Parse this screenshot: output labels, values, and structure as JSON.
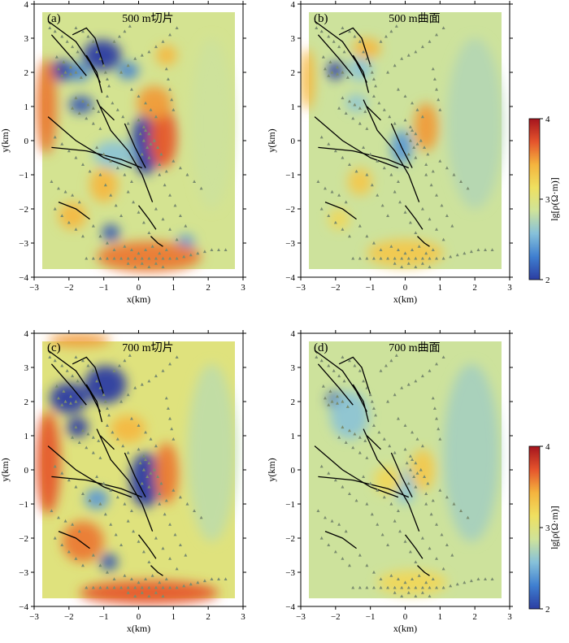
{
  "colors": {
    "scale": [
      "#2b3da2",
      "#3f7fd0",
      "#86c1da",
      "#cfe39a",
      "#efe060",
      "#f4b43e",
      "#e5542c",
      "#a5141e"
    ],
    "fault": "#000000",
    "station": "#7a8c6e"
  },
  "colorbars": [
    {
      "label": "lg[ρ(Ω·m)]",
      "ticks": [
        "4",
        "3",
        "2"
      ]
    },
    {
      "label": "lg[ρ(Ω·m)]",
      "ticks": [
        "4",
        "3",
        "2"
      ]
    }
  ],
  "chart_data": [
    {
      "type": "heatmap",
      "panel": "(a)",
      "title": "500 m切片",
      "xlabel": "x(km)",
      "ylabel": "y(km)",
      "xlim": [
        -3,
        3
      ],
      "ylim": [
        -4,
        4
      ],
      "xticks": [
        "−3",
        "−2",
        "−1",
        "0",
        "1",
        "2",
        "3"
      ],
      "yticks": [
        "4",
        "3",
        "2",
        "1",
        "0",
        "−1",
        "−2",
        "−3",
        "−4"
      ],
      "colorbar": {
        "label": "lg[ρ(Ω·m)]",
        "range": [
          2,
          4
        ]
      },
      "base_value": 2.9,
      "anomalies": [
        {
          "x": -2.2,
          "y": 2.05,
          "rx": 0.35,
          "ry": 0.3,
          "value": 2.0
        },
        {
          "x": -1.7,
          "y": 2.0,
          "rx": 0.3,
          "ry": 0.25,
          "value": 2.3
        },
        {
          "x": -1.05,
          "y": 2.5,
          "rx": 0.55,
          "ry": 0.45,
          "value": 2.0
        },
        {
          "x": -0.3,
          "y": 2.05,
          "rx": 0.3,
          "ry": 0.25,
          "value": 2.3
        },
        {
          "x": -1.65,
          "y": 1.05,
          "rx": 0.35,
          "ry": 0.25,
          "value": 2.1
        },
        {
          "x": 0.2,
          "y": -0.1,
          "rx": 0.4,
          "ry": 0.9,
          "value": 2.0
        },
        {
          "x": -0.8,
          "y": -2.7,
          "rx": 0.25,
          "ry": 0.25,
          "value": 2.1
        },
        {
          "x": 1.35,
          "y": -3.0,
          "rx": 0.25,
          "ry": 0.25,
          "value": 2.4
        },
        {
          "x": -0.7,
          "y": -0.4,
          "rx": 0.6,
          "ry": 0.4,
          "value": 2.6
        },
        {
          "x": -2.65,
          "y": 1.0,
          "rx": 0.3,
          "ry": 1.4,
          "value": 3.6
        },
        {
          "x": 0.7,
          "y": 0.1,
          "rx": 0.4,
          "ry": 0.9,
          "value": 3.7
        },
        {
          "x": 0.45,
          "y": 1.1,
          "rx": 0.5,
          "ry": 0.5,
          "value": 3.5
        },
        {
          "x": -1.0,
          "y": -1.3,
          "rx": 0.4,
          "ry": 0.5,
          "value": 3.4
        },
        {
          "x": 0.3,
          "y": -3.4,
          "rx": 1.5,
          "ry": 0.45,
          "value": 3.6
        },
        {
          "x": -1.9,
          "y": -2.2,
          "rx": 0.4,
          "ry": 0.4,
          "value": 3.4
        },
        {
          "x": 0.8,
          "y": 2.5,
          "rx": 0.3,
          "ry": 0.3,
          "value": 3.4
        },
        {
          "x": 2.1,
          "y": 0.5,
          "rx": 0.6,
          "ry": 2.5,
          "value": 2.85
        }
      ]
    },
    {
      "type": "heatmap",
      "panel": "(b)",
      "title": "500 m曲面",
      "xlabel": "x(km)",
      "ylabel": "y(km)",
      "xlim": [
        -3,
        3
      ],
      "ylim": [
        -4,
        4
      ],
      "xticks": [
        "−3",
        "−2",
        "−1",
        "0",
        "1",
        "2",
        "3"
      ],
      "yticks": [
        "4",
        "3",
        "2",
        "1",
        "0",
        "−1",
        "−2",
        "−3",
        "−4"
      ],
      "colorbar": {
        "label": "lg[ρ(Ω·m)]",
        "range": [
          2,
          4
        ]
      },
      "base_value": 2.85,
      "anomalies": [
        {
          "x": -2.0,
          "y": 2.05,
          "rx": 0.25,
          "ry": 0.25,
          "value": 2.0
        },
        {
          "x": -1.3,
          "y": 2.1,
          "rx": 0.35,
          "ry": 0.35,
          "value": 2.6
        },
        {
          "x": -1.4,
          "y": 1.1,
          "rx": 0.3,
          "ry": 0.25,
          "value": 2.6
        },
        {
          "x": -0.1,
          "y": -0.2,
          "rx": 0.3,
          "ry": 0.5,
          "value": 2.4
        },
        {
          "x": 0.6,
          "y": 0.4,
          "rx": 0.35,
          "ry": 0.7,
          "value": 3.5
        },
        {
          "x": -1.1,
          "y": 2.7,
          "rx": 0.4,
          "ry": 0.3,
          "value": 3.4
        },
        {
          "x": -2.8,
          "y": 1.8,
          "rx": 0.2,
          "ry": 0.9,
          "value": 3.4
        },
        {
          "x": -1.3,
          "y": -1.2,
          "rx": 0.35,
          "ry": 0.4,
          "value": 3.3
        },
        {
          "x": 0.0,
          "y": -3.3,
          "rx": 1.1,
          "ry": 0.4,
          "value": 3.3
        },
        {
          "x": -1.9,
          "y": -2.3,
          "rx": 0.3,
          "ry": 0.3,
          "value": 3.2
        },
        {
          "x": 2.0,
          "y": 0.5,
          "rx": 0.8,
          "ry": 2.5,
          "value": 2.75
        }
      ]
    },
    {
      "type": "heatmap",
      "panel": "(c)",
      "title": "700 m切片",
      "xlabel": "x(km)",
      "ylabel": "y(km)",
      "xlim": [
        -3,
        3
      ],
      "ylim": [
        -4,
        4
      ],
      "xticks": [
        "−3",
        "−2",
        "−1",
        "0",
        "1",
        "2",
        "3"
      ],
      "yticks": [
        "4",
        "3",
        "2",
        "1",
        "0",
        "−1",
        "−2",
        "−3",
        "−4"
      ],
      "colorbar": {
        "label": "lg[ρ(Ω·m)]",
        "range": [
          2,
          4
        ]
      },
      "base_value": 3.0,
      "anomalies": [
        {
          "x": -2.0,
          "y": 2.1,
          "rx": 0.55,
          "ry": 0.45,
          "value": 2.0
        },
        {
          "x": -0.95,
          "y": 2.5,
          "rx": 0.6,
          "ry": 0.55,
          "value": 2.0
        },
        {
          "x": -1.75,
          "y": 1.25,
          "rx": 0.3,
          "ry": 0.3,
          "value": 2.0
        },
        {
          "x": 0.2,
          "y": -0.3,
          "rx": 0.45,
          "ry": 0.8,
          "value": 2.0
        },
        {
          "x": -1.2,
          "y": -0.85,
          "rx": 0.35,
          "ry": 0.3,
          "value": 2.4
        },
        {
          "x": -0.85,
          "y": -2.7,
          "rx": 0.25,
          "ry": 0.25,
          "value": 2.1
        },
        {
          "x": -2.6,
          "y": 0.2,
          "rx": 0.35,
          "ry": 1.5,
          "value": 3.7
        },
        {
          "x": 0.8,
          "y": -0.1,
          "rx": 0.35,
          "ry": 0.9,
          "value": 3.6
        },
        {
          "x": -1.6,
          "y": -2.1,
          "rx": 0.6,
          "ry": 0.6,
          "value": 3.6
        },
        {
          "x": 0.3,
          "y": -3.6,
          "rx": 2.0,
          "ry": 0.35,
          "value": 3.7
        },
        {
          "x": -1.7,
          "y": 3.8,
          "rx": 0.9,
          "ry": 0.2,
          "value": 3.5
        },
        {
          "x": -0.3,
          "y": 1.2,
          "rx": 0.5,
          "ry": 0.4,
          "value": 3.4
        },
        {
          "x": 2.1,
          "y": 0.5,
          "rx": 0.7,
          "ry": 2.6,
          "value": 2.8
        }
      ]
    },
    {
      "type": "heatmap",
      "panel": "(d)",
      "title": "700 m曲面",
      "xlabel": "x(km)",
      "ylabel": "y(km)",
      "xlim": [
        -3,
        3
      ],
      "ylim": [
        -4,
        4
      ],
      "xticks": [
        "−3",
        "−2",
        "−1",
        "0",
        "1",
        "2",
        "3"
      ],
      "yticks": [
        "4",
        "3",
        "2",
        "1",
        "0",
        "−1",
        "−2",
        "−3",
        "−4"
      ],
      "colorbar": {
        "label": "lg[ρ(Ω·m)]",
        "range": [
          2,
          4
        ]
      },
      "base_value": 2.85,
      "anomalies": [
        {
          "x": -2.0,
          "y": 2.05,
          "rx": 0.25,
          "ry": 0.25,
          "value": 2.1
        },
        {
          "x": -1.6,
          "y": 1.6,
          "rx": 0.55,
          "ry": 0.7,
          "value": 2.6
        },
        {
          "x": 0.0,
          "y": -0.5,
          "rx": 0.3,
          "ry": 0.5,
          "value": 2.6
        },
        {
          "x": 0.5,
          "y": 0.0,
          "rx": 0.35,
          "ry": 0.6,
          "value": 3.3
        },
        {
          "x": 0.2,
          "y": -3.3,
          "rx": 1.0,
          "ry": 0.35,
          "value": 3.2
        },
        {
          "x": -0.5,
          "y": -0.3,
          "rx": 0.4,
          "ry": 0.4,
          "value": 3.2
        },
        {
          "x": 1.9,
          "y": 0.5,
          "rx": 0.8,
          "ry": 2.6,
          "value": 2.7
        }
      ]
    }
  ],
  "faults": [
    [
      [
        -2.6,
        3.5
      ],
      [
        -1.8,
        2.9
      ],
      [
        -1.4,
        2.3
      ],
      [
        -1.1,
        1.7
      ]
    ],
    [
      [
        -2.5,
        3.1
      ],
      [
        -1.9,
        2.4
      ],
      [
        -1.5,
        1.9
      ]
    ],
    [
      [
        -1.9,
        3.1
      ],
      [
        -1.5,
        3.3
      ],
      [
        -1.25,
        3.0
      ],
      [
        -1.0,
        2.2
      ]
    ],
    [
      [
        -1.5,
        2.5
      ],
      [
        -1.2,
        2.0
      ],
      [
        -1.05,
        1.4
      ]
    ],
    [
      [
        -1.2,
        1.2
      ],
      [
        -0.8,
        0.3
      ],
      [
        -0.3,
        -0.3
      ],
      [
        0.1,
        -1.0
      ],
      [
        0.4,
        -1.8
      ]
    ],
    [
      [
        -2.6,
        0.7
      ],
      [
        -1.8,
        0.0
      ],
      [
        -1.0,
        -0.5
      ],
      [
        -0.2,
        -0.8
      ]
    ],
    [
      [
        -2.5,
        -0.2
      ],
      [
        -1.5,
        -0.3
      ],
      [
        -0.5,
        -0.55
      ],
      [
        0.1,
        -0.8
      ]
    ],
    [
      [
        -0.4,
        0.5
      ],
      [
        -0.1,
        -0.2
      ],
      [
        0.2,
        -0.8
      ]
    ],
    [
      [
        -1.1,
        1.0
      ],
      [
        -0.7,
        0.6
      ]
    ],
    [
      [
        -2.3,
        -1.8
      ],
      [
        -1.8,
        -2.0
      ],
      [
        -1.4,
        -2.3
      ]
    ],
    [
      [
        0.0,
        -1.9
      ],
      [
        0.3,
        -2.3
      ],
      [
        0.5,
        -2.6
      ]
    ],
    [
      [
        0.35,
        -2.8
      ],
      [
        0.55,
        -3.0
      ],
      [
        0.7,
        -3.1
      ]
    ]
  ],
  "stations": [
    [
      -2.55,
      3.3
    ],
    [
      -2.4,
      3.2
    ],
    [
      -2.2,
      3.05
    ],
    [
      -2.05,
      2.9
    ],
    [
      -1.9,
      2.75
    ],
    [
      -1.75,
      2.6
    ],
    [
      -1.8,
      3.3
    ],
    [
      -1.6,
      3.2
    ],
    [
      -1.45,
      3.05
    ],
    [
      -1.3,
      2.9
    ],
    [
      -2.35,
      2.45
    ],
    [
      -2.15,
      2.3
    ],
    [
      -1.95,
      2.15
    ],
    [
      -1.8,
      2.0
    ],
    [
      -1.65,
      1.85
    ],
    [
      -2.3,
      2.1
    ],
    [
      -2.1,
      2.0
    ],
    [
      -2.2,
      1.9
    ],
    [
      -1.95,
      1.95
    ],
    [
      -1.2,
      2.6
    ],
    [
      -1.1,
      2.4
    ],
    [
      -1.0,
      2.2
    ],
    [
      -0.95,
      2.0
    ],
    [
      -0.9,
      1.8
    ],
    [
      -0.85,
      1.6
    ],
    [
      -0.7,
      2.9
    ],
    [
      -0.55,
      3.05
    ],
    [
      -0.4,
      3.2
    ],
    [
      -0.25,
      3.35
    ],
    [
      -0.5,
      2.0
    ],
    [
      -0.3,
      2.2
    ],
    [
      -0.1,
      2.4
    ],
    [
      0.1,
      2.5
    ],
    [
      0.3,
      2.6
    ],
    [
      0.5,
      2.75
    ],
    [
      0.7,
      2.9
    ],
    [
      0.9,
      3.1
    ],
    [
      1.1,
      3.3
    ],
    [
      -1.8,
      1.25
    ],
    [
      -1.6,
      1.15
    ],
    [
      -1.45,
      1.05
    ],
    [
      -1.3,
      0.95
    ],
    [
      -1.15,
      0.85
    ],
    [
      -1.9,
      0.95
    ],
    [
      -1.7,
      0.8
    ],
    [
      -1.5,
      0.65
    ],
    [
      -1.3,
      0.5
    ],
    [
      -1.1,
      0.35
    ],
    [
      -0.9,
      1.3
    ],
    [
      -0.75,
      1.1
    ],
    [
      -0.6,
      0.9
    ],
    [
      -0.45,
      0.7
    ],
    [
      -0.3,
      0.5
    ],
    [
      -0.2,
      1.5
    ],
    [
      0.0,
      1.3
    ],
    [
      0.2,
      1.1
    ],
    [
      0.35,
      0.9
    ],
    [
      0.5,
      0.7
    ],
    [
      0.0,
      0.6
    ],
    [
      0.15,
      0.4
    ],
    [
      0.3,
      0.2
    ],
    [
      0.45,
      0.0
    ],
    [
      0.55,
      -0.2
    ],
    [
      0.65,
      -0.4
    ],
    [
      0.05,
      0.2
    ],
    [
      0.15,
      0.0
    ],
    [
      0.25,
      -0.2
    ],
    [
      0.1,
      -0.4
    ],
    [
      0.3,
      -0.5
    ],
    [
      0.2,
      0.3
    ],
    [
      0.35,
      -0.1
    ],
    [
      0.8,
      2.1
    ],
    [
      0.85,
      1.8
    ],
    [
      0.9,
      1.5
    ],
    [
      0.95,
      1.2
    ],
    [
      1.0,
      0.9
    ],
    [
      -2.4,
      0.1
    ],
    [
      -2.2,
      -0.1
    ],
    [
      -2.0,
      -0.3
    ],
    [
      -1.8,
      -0.5
    ],
    [
      -1.6,
      -0.7
    ],
    [
      -1.4,
      -0.9
    ],
    [
      -2.5,
      -1.2
    ],
    [
      -2.3,
      -1.4
    ],
    [
      -2.1,
      -1.5
    ],
    [
      -1.9,
      -1.6
    ],
    [
      -1.7,
      -1.8
    ],
    [
      -1.2,
      -0.2
    ],
    [
      -1.0,
      -0.4
    ],
    [
      -0.8,
      -0.6
    ],
    [
      -0.6,
      -0.8
    ],
    [
      -0.4,
      -1.0
    ],
    [
      -0.2,
      -1.2
    ],
    [
      -1.1,
      -1.0
    ],
    [
      -0.95,
      -1.3
    ],
    [
      -0.8,
      -1.6
    ],
    [
      -0.65,
      -1.9
    ],
    [
      -0.5,
      -2.2
    ],
    [
      -0.3,
      -1.5
    ],
    [
      -0.15,
      -1.8
    ],
    [
      0.0,
      -2.1
    ],
    [
      0.15,
      -2.4
    ],
    [
      0.3,
      -2.7
    ],
    [
      -2.4,
      -2.0
    ],
    [
      -2.2,
      -2.2
    ],
    [
      -2.0,
      -2.4
    ],
    [
      -1.8,
      -2.6
    ],
    [
      -1.6,
      -2.8
    ],
    [
      -1.3,
      -2.5
    ],
    [
      -1.1,
      -2.8
    ],
    [
      -0.9,
      -3.0
    ],
    [
      -0.7,
      -3.2
    ],
    [
      -1.5,
      -3.45
    ],
    [
      -1.3,
      -3.45
    ],
    [
      -1.1,
      -3.45
    ],
    [
      -0.9,
      -3.45
    ],
    [
      -0.7,
      -3.45
    ],
    [
      -0.5,
      -3.45
    ],
    [
      -0.3,
      -3.45
    ],
    [
      -0.1,
      -3.45
    ],
    [
      0.1,
      -3.45
    ],
    [
      0.3,
      -3.45
    ],
    [
      0.5,
      -3.45
    ],
    [
      0.7,
      -3.45
    ],
    [
      0.9,
      -3.45
    ],
    [
      1.1,
      -3.45
    ],
    [
      1.3,
      -3.4
    ],
    [
      1.5,
      -3.35
    ],
    [
      1.7,
      -3.3
    ],
    [
      1.9,
      -3.25
    ],
    [
      2.1,
      -3.2
    ],
    [
      2.3,
      -3.2
    ],
    [
      2.5,
      -3.2
    ],
    [
      -0.4,
      -3.1
    ],
    [
      -0.2,
      -3.2
    ],
    [
      0.0,
      -3.3
    ],
    [
      0.2,
      -3.2
    ],
    [
      0.4,
      -3.1
    ],
    [
      0.6,
      -3.3
    ],
    [
      0.8,
      -3.2
    ],
    [
      -0.3,
      -3.6
    ],
    [
      -0.1,
      -3.7
    ],
    [
      0.1,
      -3.6
    ],
    [
      0.3,
      -3.7
    ],
    [
      0.5,
      -3.6
    ],
    [
      0.7,
      -3.7
    ],
    [
      0.6,
      -1.0
    ],
    [
      0.75,
      -1.3
    ],
    [
      0.9,
      -1.6
    ],
    [
      1.05,
      -1.9
    ],
    [
      1.2,
      -2.2
    ],
    [
      1.35,
      -2.5
    ],
    [
      0.5,
      -2.0
    ],
    [
      0.7,
      -2.3
    ],
    [
      0.9,
      -2.6
    ],
    [
      1.1,
      -2.9
    ],
    [
      1.0,
      -0.6
    ],
    [
      1.2,
      -0.8
    ],
    [
      1.4,
      -1.0
    ],
    [
      1.6,
      -1.2
    ],
    [
      1.8,
      -1.4
    ],
    [
      0.6,
      -0.7
    ],
    [
      0.8,
      -0.9
    ]
  ]
}
